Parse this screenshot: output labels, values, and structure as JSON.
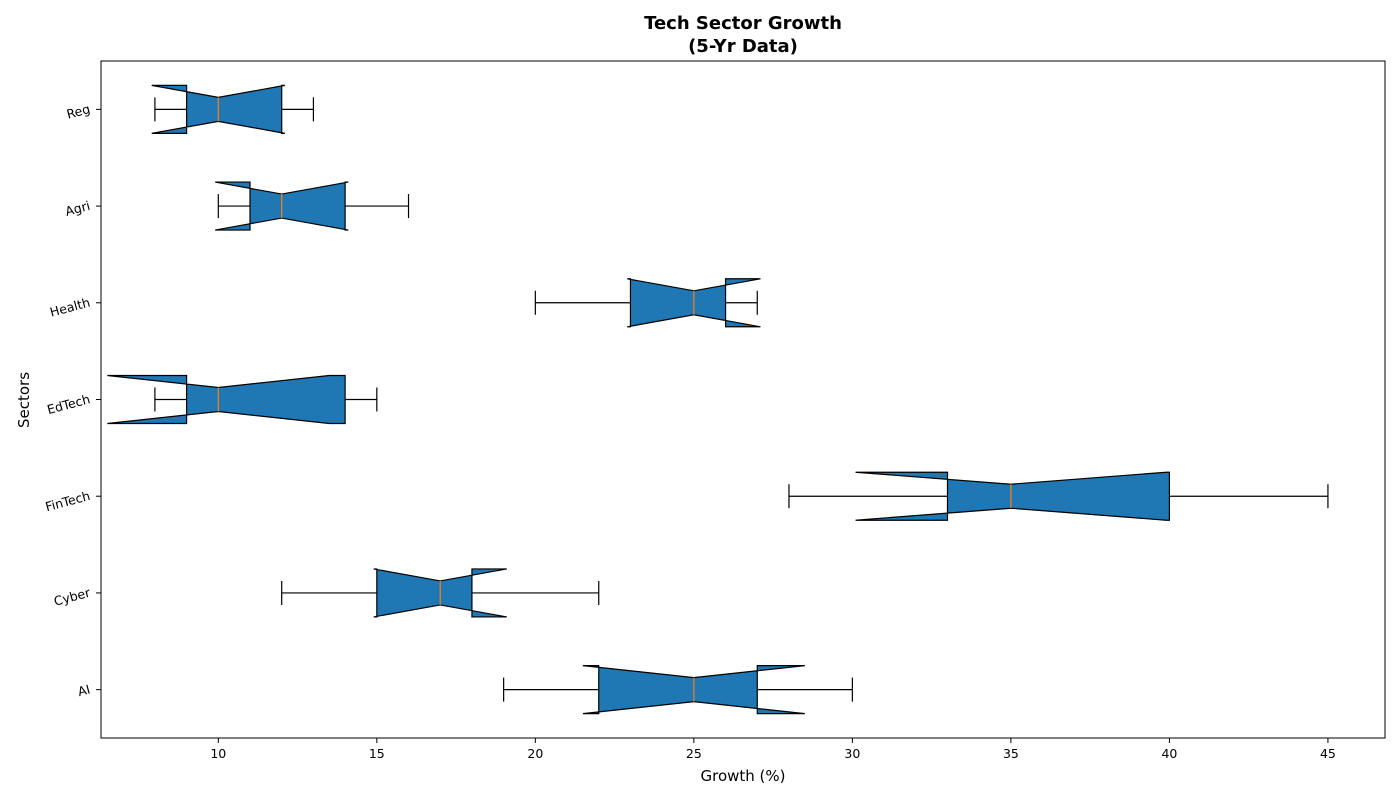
{
  "chart_data": {
    "type": "boxplot",
    "orientation": "horizontal",
    "notched": true,
    "title_lines": [
      "Tech Sector Growth",
      "(5-Yr Data)"
    ],
    "xlabel": "Growth (%)",
    "ylabel": "Sectors",
    "xlim": [
      6.3,
      46.8
    ],
    "xticks": [
      10,
      15,
      20,
      25,
      30,
      35,
      40,
      45
    ],
    "grid": false,
    "categories": [
      "AI",
      "Cyber",
      "FinTech",
      "EdTech",
      "Health",
      "Agri",
      "Reg"
    ],
    "boxes": [
      {
        "label": "AI",
        "whislo": 19,
        "q1": 22,
        "med": 25,
        "q3": 27,
        "whishi": 30,
        "cilo": 21.5,
        "cihi": 28.5
      },
      {
        "label": "Cyber",
        "whislo": 12,
        "q1": 15,
        "med": 17,
        "q3": 18,
        "whishi": 22,
        "cilo": 14.9,
        "cihi": 19.1
      },
      {
        "label": "FinTech",
        "whislo": 28,
        "q1": 33,
        "med": 35,
        "q3": 40,
        "whishi": 45,
        "cilo": 30.1,
        "cihi": 39.9
      },
      {
        "label": "EdTech",
        "whislo": 8,
        "q1": 9,
        "med": 10,
        "q3": 14,
        "whishi": 15,
        "cilo": 6.5,
        "cihi": 13.5
      },
      {
        "label": "Health",
        "whislo": 20,
        "q1": 23,
        "med": 25,
        "q3": 26,
        "whishi": 27,
        "cilo": 22.9,
        "cihi": 27.1
      },
      {
        "label": "Agri",
        "whislo": 10,
        "q1": 11,
        "med": 12,
        "q3": 14,
        "whishi": 16,
        "cilo": 9.9,
        "cihi": 14.1
      },
      {
        "label": "Reg",
        "whislo": 8,
        "q1": 9,
        "med": 10,
        "q3": 12,
        "whishi": 13,
        "cilo": 7.9,
        "cihi": 12.1
      }
    ],
    "colors": {
      "box_fill": "#1f77b4",
      "median": "#ff7f0e",
      "edge": "#000000"
    }
  }
}
